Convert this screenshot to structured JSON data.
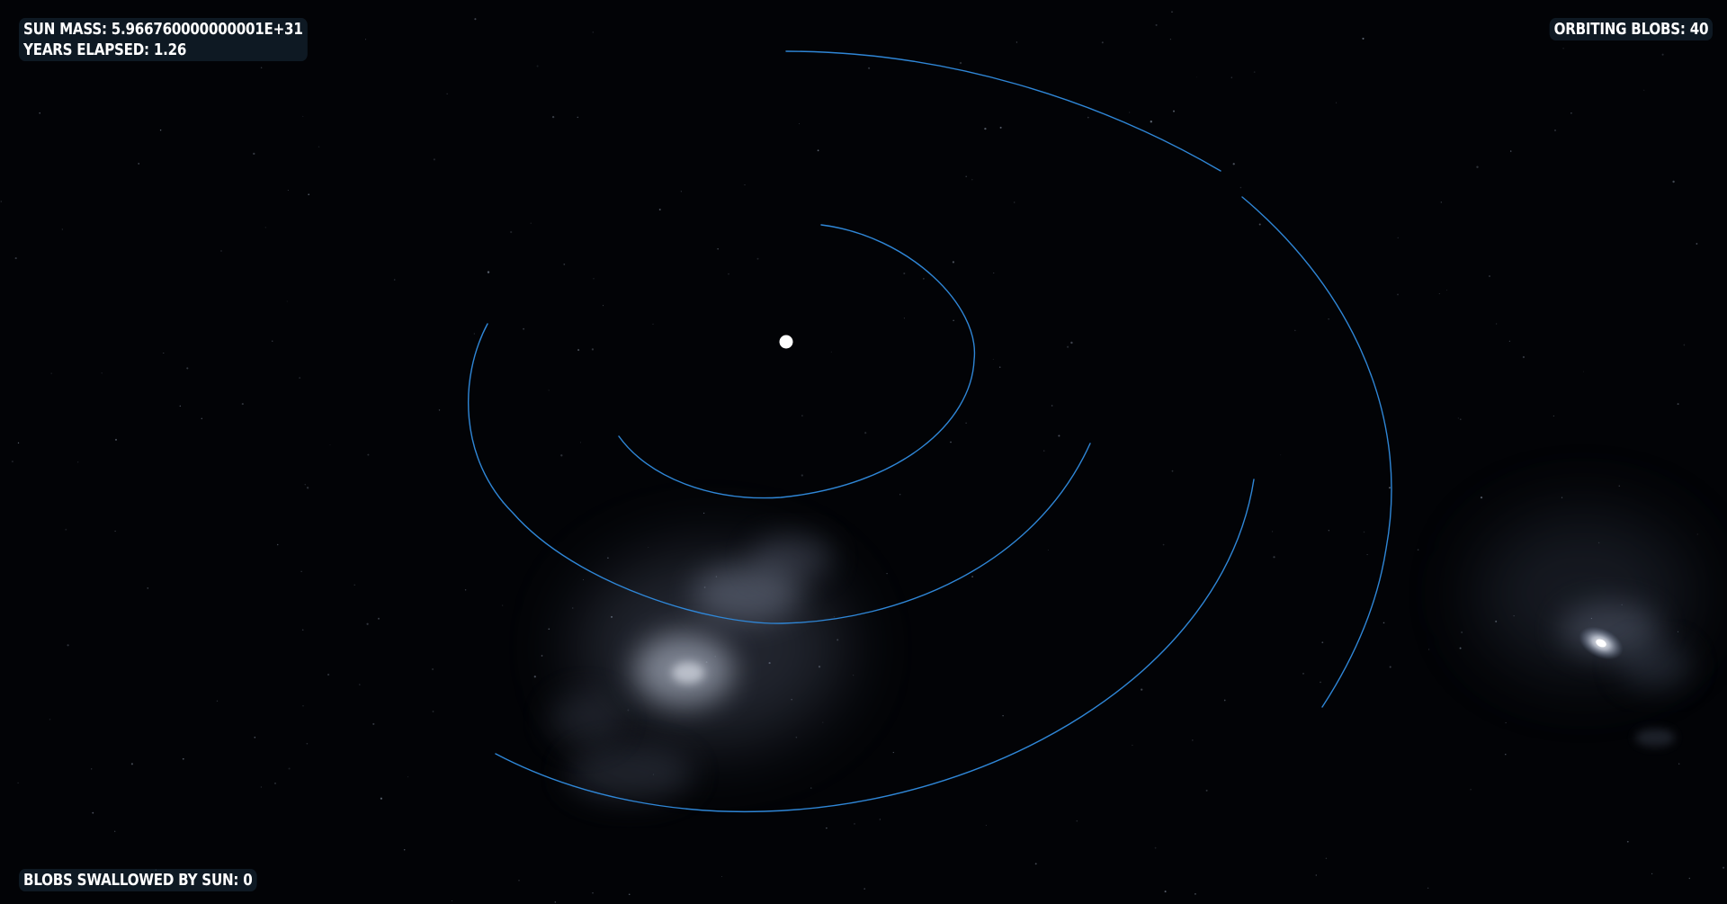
{
  "hud": {
    "sun_mass_label": "SUN MASS:",
    "sun_mass_value": "5.966760000000001E+31",
    "years_elapsed_label": "YEARS ELAPSED:",
    "years_elapsed_value": "1.26",
    "orbiting_blobs_label": "ORBITING BLOBS:",
    "orbiting_blobs_value": "40",
    "swallowed_label": "BLOBS SWALLOWED BY SUN:",
    "swallowed_value": "0"
  },
  "colors": {
    "background": "#020306",
    "orbit_trail": "#2f86d6",
    "sun": "#ffffff",
    "nebula": "#b4bed2"
  },
  "icons": {
    "sun": "white-dot-icon"
  }
}
